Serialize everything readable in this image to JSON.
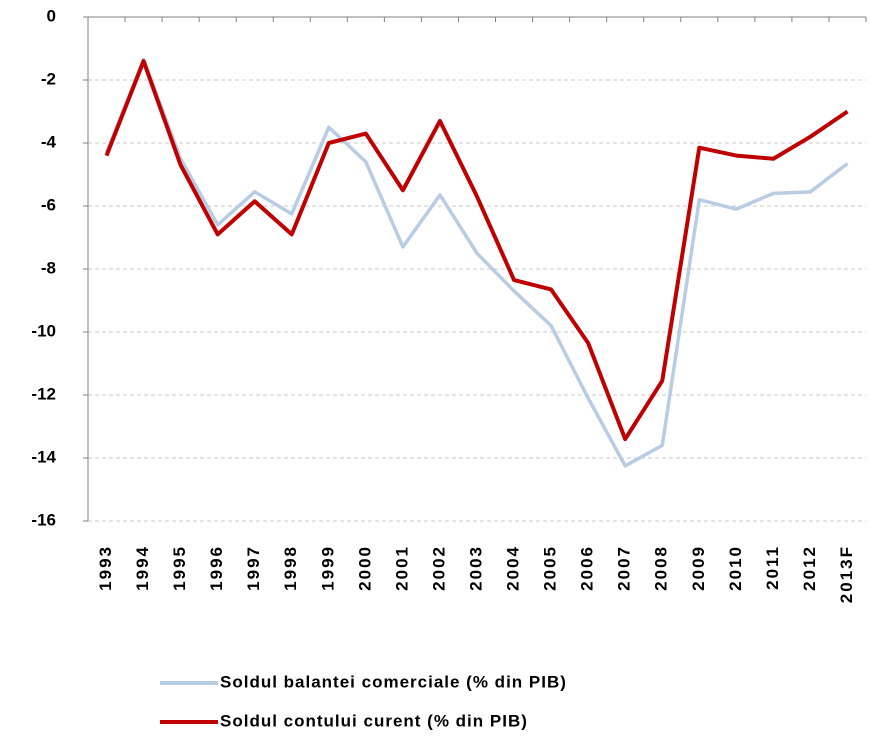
{
  "chart_data": {
    "type": "line",
    "categories": [
      "1993",
      "1994",
      "1995",
      "1996",
      "1997",
      "1998",
      "1999",
      "2000",
      "2001",
      "2002",
      "2003",
      "2004",
      "2005",
      "2006",
      "2007",
      "2008",
      "2009",
      "2010",
      "2011",
      "2012",
      "2013F"
    ],
    "series": [
      {
        "name": "Soldul balantei comerciale (% din PIB)",
        "color": "#b8cce4",
        "values": [
          -4.3,
          -1.35,
          -4.5,
          -6.6,
          -5.55,
          -6.25,
          -3.5,
          -4.6,
          -7.3,
          -5.65,
          -7.5,
          -8.7,
          -9.8,
          -12.1,
          -14.25,
          -13.6,
          -5.8,
          -6.1,
          -5.6,
          -5.55,
          -4.65
        ]
      },
      {
        "name": "Soldul contului curent (% din PIB)",
        "color": "#c00000",
        "values": [
          -4.4,
          -1.4,
          -4.7,
          -6.9,
          -5.85,
          -6.9,
          -4.0,
          -3.7,
          -5.5,
          -3.3,
          -5.7,
          -8.35,
          -8.65,
          -10.35,
          -13.4,
          -11.55,
          -4.15,
          -4.4,
          -4.5,
          -3.8,
          -3.0
        ]
      }
    ],
    "ylim": [
      -16,
      0
    ],
    "yticks": [
      0,
      -2,
      -4,
      -6,
      -8,
      -10,
      -12,
      -14,
      -16
    ],
    "grid": true
  }
}
